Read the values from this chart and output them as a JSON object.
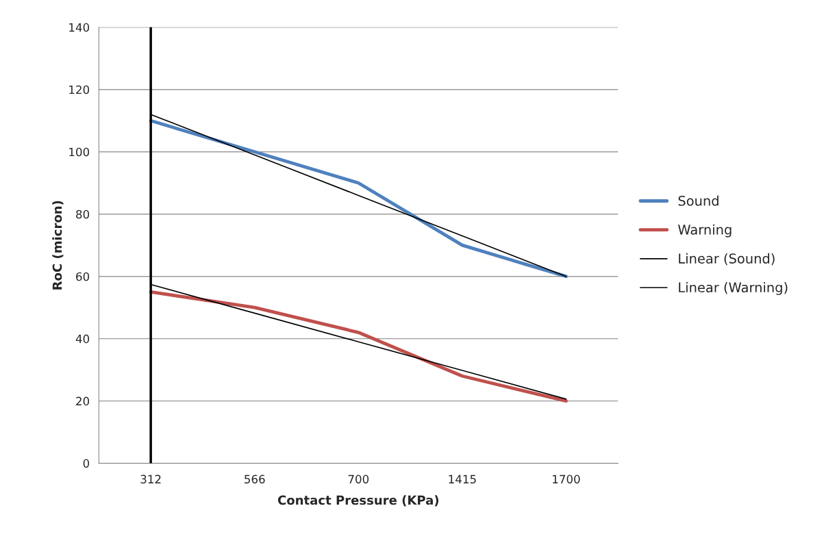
{
  "chart_data": {
    "type": "line",
    "xlabel": "Contact Pressure (KPa)",
    "ylabel": "RoC (micron)",
    "categories": [
      "312",
      "566",
      "700",
      "1415",
      "1700"
    ],
    "series": [
      {
        "name": "Sound",
        "color": "#4f81bd",
        "values": [
          110,
          100,
          90,
          70,
          60
        ]
      },
      {
        "name": "Warning",
        "color": "#c0504d",
        "values": [
          55,
          50,
          42,
          28,
          20
        ]
      },
      {
        "name": "Linear (Sound)",
        "color": "#000000",
        "values": [
          112,
          99,
          86,
          73,
          60
        ]
      },
      {
        "name": "Linear (Warning)",
        "color": "#000000",
        "values": [
          57.4,
          48.2,
          39,
          29.8,
          20.6
        ]
      }
    ],
    "ylim": [
      0,
      140
    ],
    "yticks": [
      0,
      20,
      40,
      60,
      80,
      100,
      120,
      140
    ],
    "ref_lines": [
      {
        "axis": "x",
        "value": "312",
        "color": "#000000"
      }
    ],
    "grid": "y",
    "legend": "right",
    "marker": "none",
    "line_style": "solid"
  }
}
